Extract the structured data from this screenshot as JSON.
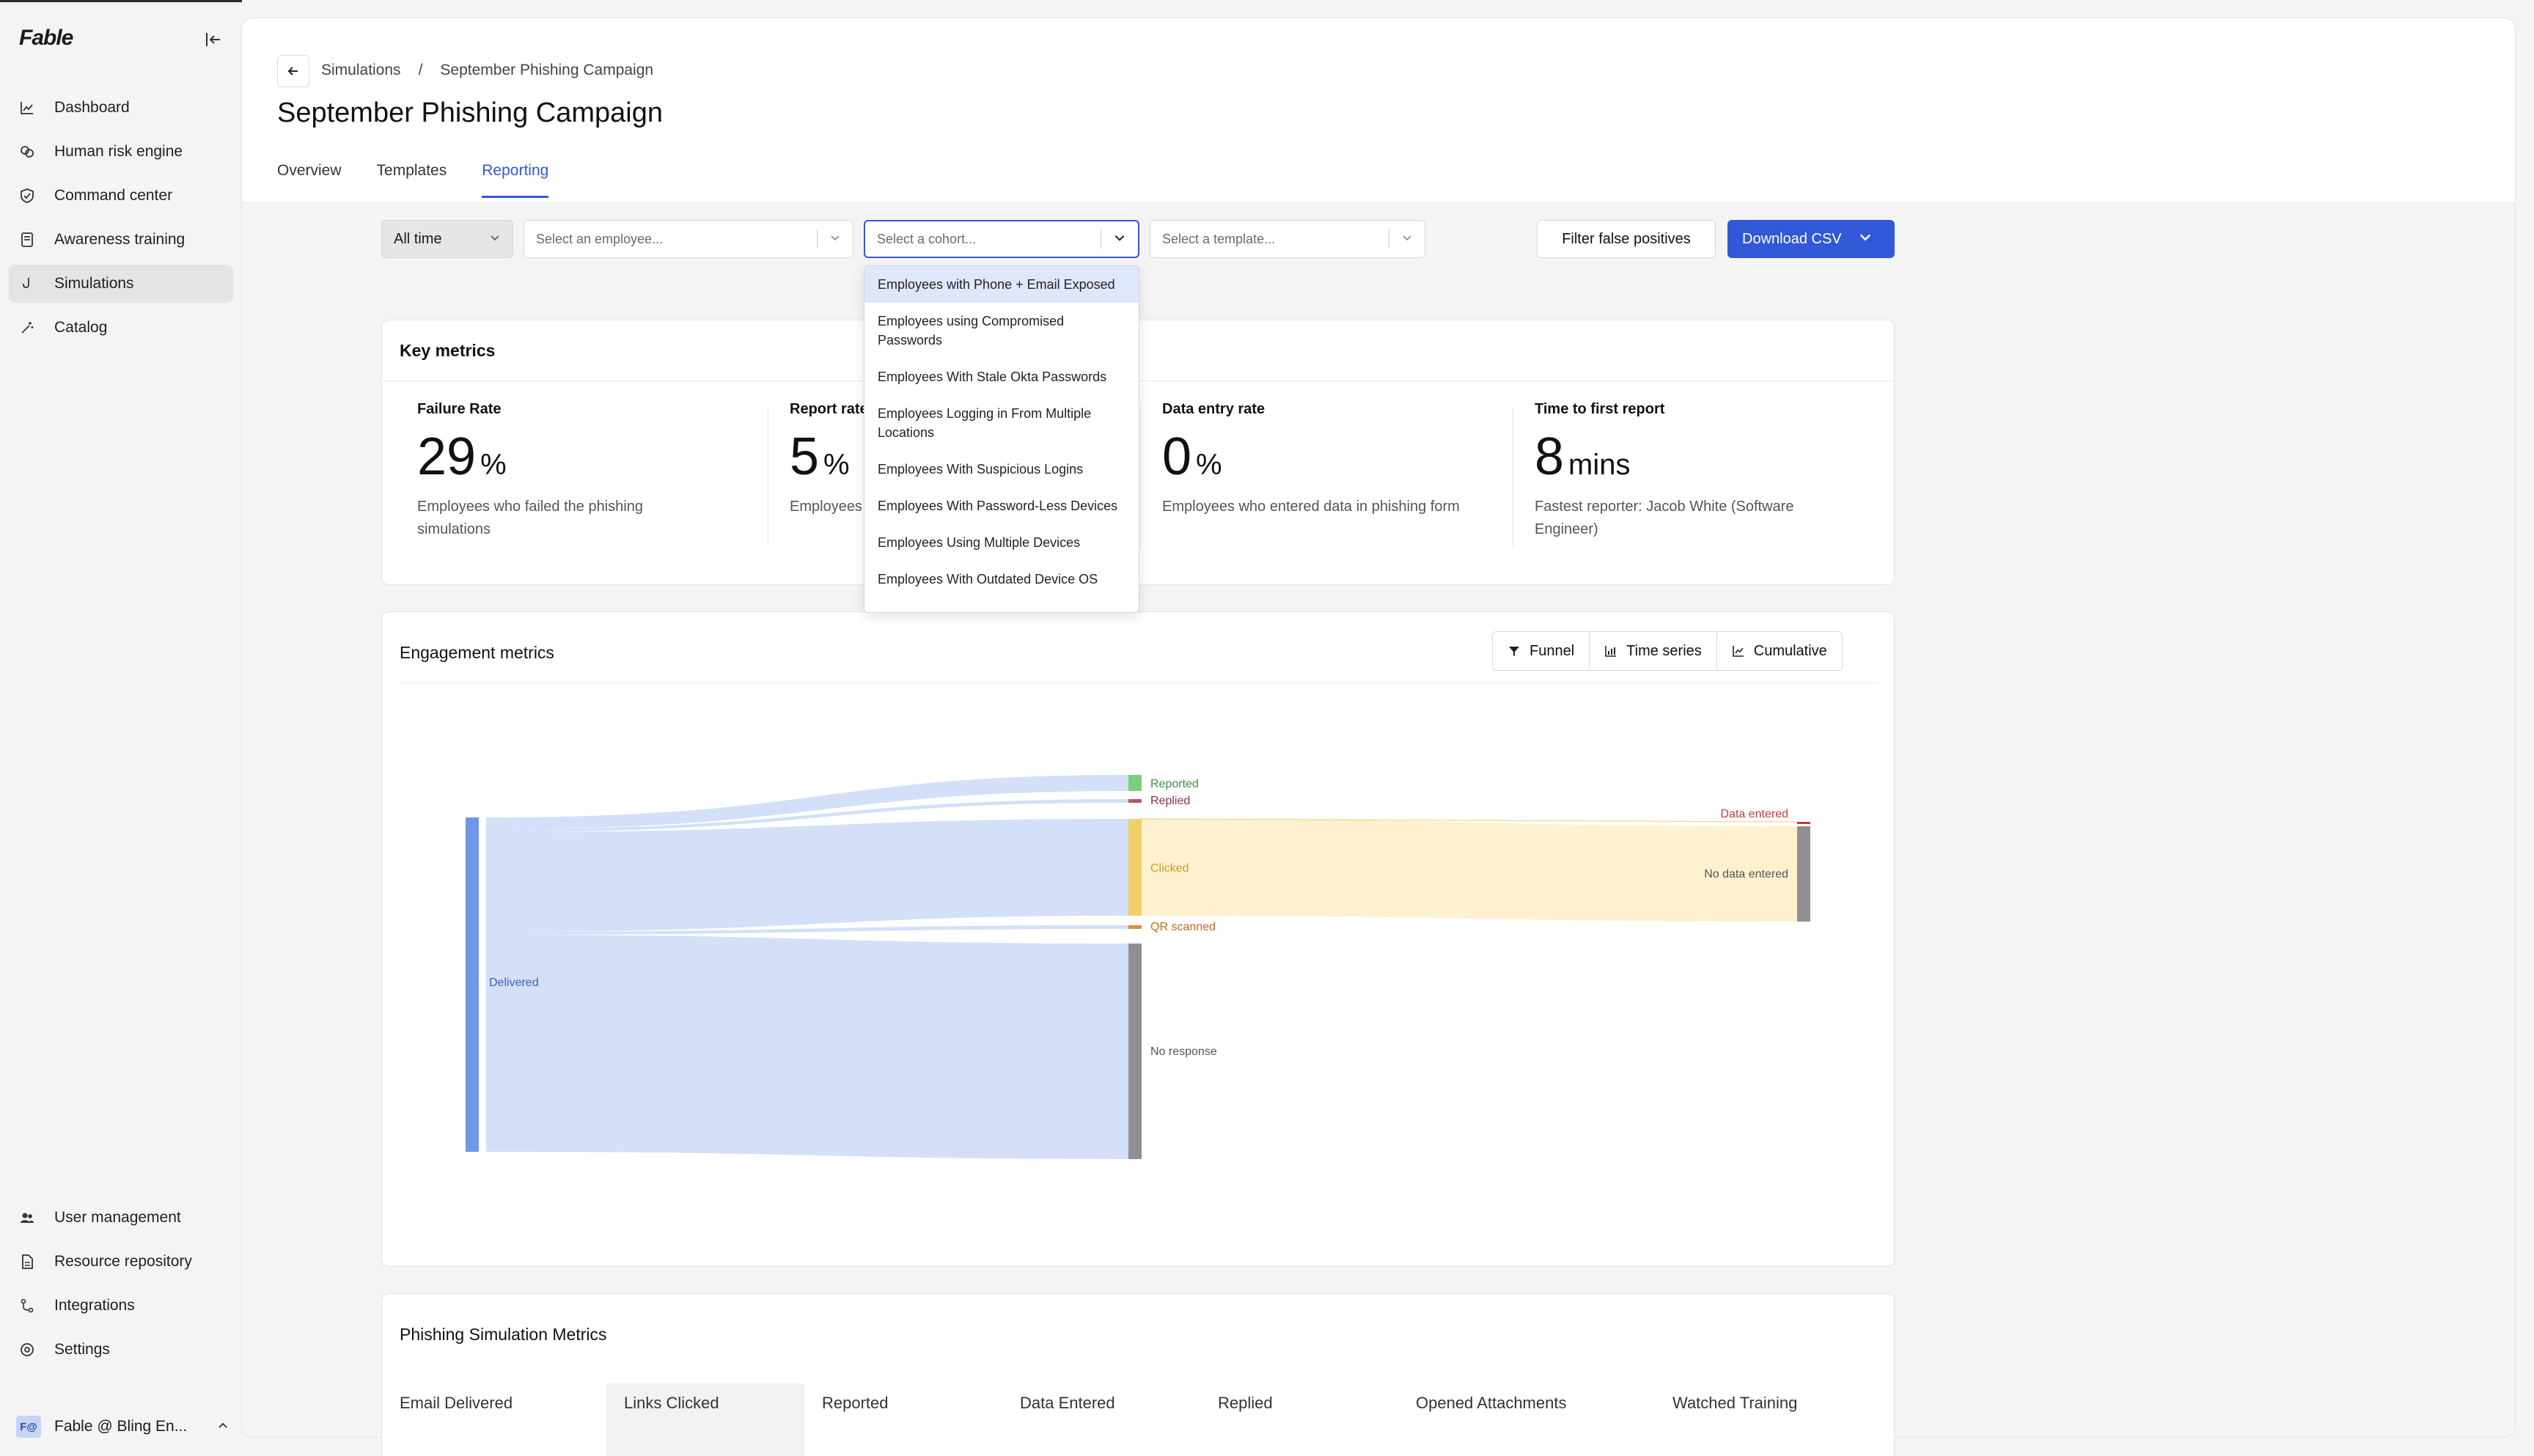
{
  "app": {
    "logo": "Fable"
  },
  "sidebar": {
    "items": [
      {
        "label": "Dashboard",
        "icon": "chart-line-icon"
      },
      {
        "label": "Human risk engine",
        "icon": "brain-icon"
      },
      {
        "label": "Command center",
        "icon": "shield-icon"
      },
      {
        "label": "Awareness training",
        "icon": "book-icon"
      },
      {
        "label": "Simulations",
        "icon": "hook-icon",
        "active": true
      },
      {
        "label": "Catalog",
        "icon": "wand-icon"
      }
    ],
    "bottom_items": [
      {
        "label": "User management",
        "icon": "users-icon"
      },
      {
        "label": "Resource repository",
        "icon": "document-icon"
      },
      {
        "label": "Integrations",
        "icon": "integration-icon"
      },
      {
        "label": "Settings",
        "icon": "gear-icon"
      }
    ],
    "account": {
      "initials": "F@",
      "name": "Fable @ Bling En..."
    }
  },
  "header": {
    "breadcrumb": [
      "Simulations",
      "/",
      "September Phishing Campaign"
    ],
    "title": "September Phishing Campaign",
    "tabs": [
      {
        "label": "Overview"
      },
      {
        "label": "Templates"
      },
      {
        "label": "Reporting",
        "active": true
      }
    ]
  },
  "filters": {
    "time": "All time",
    "employee_placeholder": "Select an employee...",
    "cohort_placeholder": "Select a cohort...",
    "template_placeholder": "Select a template...",
    "filter_false_positives": "Filter false positives",
    "download_csv": "Download CSV"
  },
  "cohort_options": [
    "Employees with Phone + Email Exposed",
    "Employees using Compromised Passwords",
    "Employees With Stale Okta Passwords",
    "Employees Logging in From Multiple Locations",
    "Employees With Suspicious Logins",
    "Employees With Password-Less Devices",
    "Employees Using Multiple Devices",
    "Employees With Outdated Device OS"
  ],
  "key_metrics": {
    "title": "Key metrics",
    "metrics": [
      {
        "label": "Failure Rate",
        "value": "29",
        "unit": "%",
        "desc": "Employees who failed the phishing simulations"
      },
      {
        "label": "Report rate",
        "value": "5",
        "unit": "%",
        "desc": "Employees"
      },
      {
        "label": "Data entry rate",
        "value": "0",
        "unit": "%",
        "desc": "Employees who entered data in phishing form"
      },
      {
        "label": "Time to first report",
        "value": "8",
        "unit": "mins",
        "desc": "Fastest reporter: Jacob White (Software Engineer)"
      }
    ]
  },
  "engagement": {
    "title": "Engagement metrics",
    "views": [
      {
        "label": "Funnel",
        "icon": "filter-icon"
      },
      {
        "label": "Time series",
        "icon": "bar-chart-icon"
      },
      {
        "label": "Cumulative",
        "icon": "line-chart-icon"
      }
    ],
    "nodes": {
      "delivered": "Delivered",
      "reported": "Reported",
      "replied": "Replied",
      "clicked": "Clicked",
      "qr": "QR scanned",
      "no_response": "No response",
      "data_entered": "Data entered",
      "no_data": "No data entered"
    },
    "colors": {
      "delivered": "#6f97e8",
      "flow": "#d3e0f8",
      "reported": "#7ccf80",
      "replied": "#b5576d",
      "clicked": "#f1cf6a",
      "clicked_flow": "#fdf1cf",
      "qr": "#e28a3c",
      "no_response": "#8f8f93",
      "data_entered": "#c53a3a"
    }
  },
  "phishing_metrics": {
    "title": "Phishing Simulation Metrics",
    "columns": [
      "Email Delivered",
      "Links Clicked",
      "Reported",
      "Data Entered",
      "Replied",
      "Opened Attachments",
      "Watched Training"
    ]
  }
}
